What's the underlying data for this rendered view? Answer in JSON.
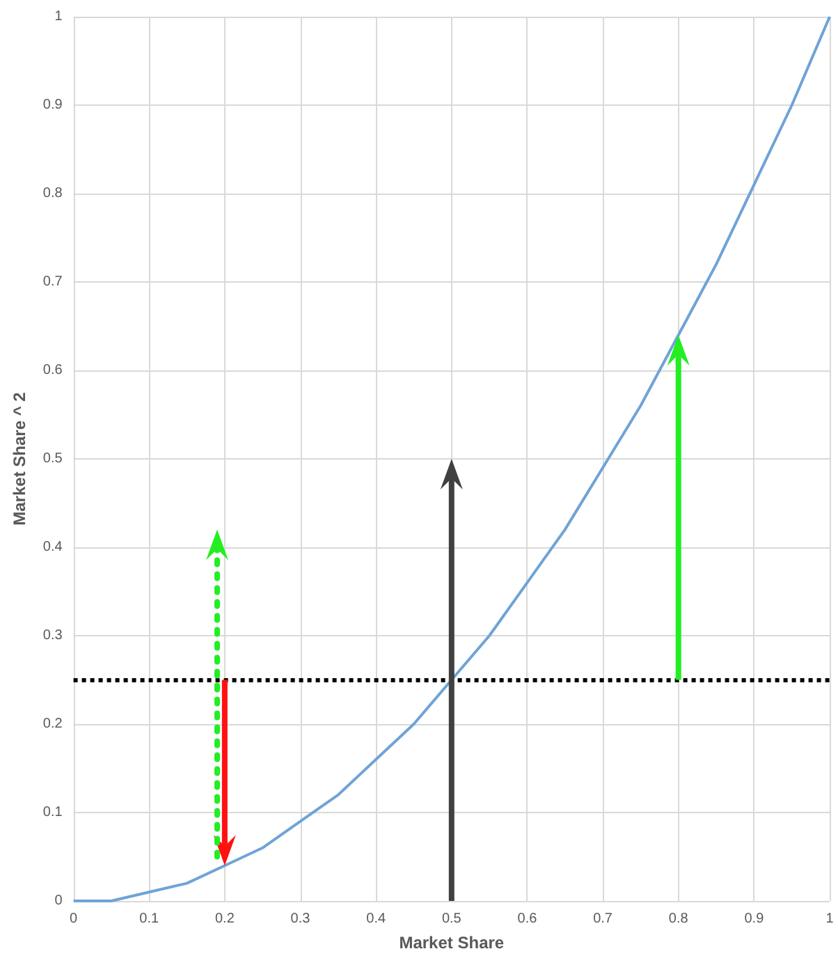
{
  "chart_data": {
    "type": "line",
    "xlabel": "Market Share",
    "ylabel": "Market Share ^ 2",
    "x": [
      0,
      0.05,
      0.1,
      0.15,
      0.2,
      0.25,
      0.3,
      0.35,
      0.4,
      0.45,
      0.5,
      0.55,
      0.6,
      0.65,
      0.7,
      0.75,
      0.8,
      0.85,
      0.9,
      0.95,
      1
    ],
    "series": [
      {
        "color": "#6fa3d6",
        "values": [
          0,
          0,
          0.01,
          0.02,
          0.04,
          0.06,
          0.09,
          0.12,
          0.16,
          0.2,
          0.25,
          0.3,
          0.36,
          0.42,
          0.49,
          0.56,
          0.64,
          0.72,
          0.81,
          0.9,
          1
        ]
      }
    ],
    "xlim": [
      0,
      1
    ],
    "xticks": [
      0,
      0.1,
      0.2,
      0.3,
      0.4,
      0.5,
      0.6,
      0.7,
      0.8,
      0.9,
      1
    ],
    "ylim": [
      0,
      1
    ],
    "yticks": [
      0,
      0.1,
      0.2,
      0.3,
      0.4,
      0.5,
      0.6,
      0.7,
      0.8,
      0.9,
      1
    ],
    "grid": true,
    "marker": "none",
    "line_style": "solid",
    "ref_lines": [
      {
        "axis": "y",
        "value": 0.25,
        "color": "#000000",
        "line_style": "dotted"
      }
    ]
  }
}
